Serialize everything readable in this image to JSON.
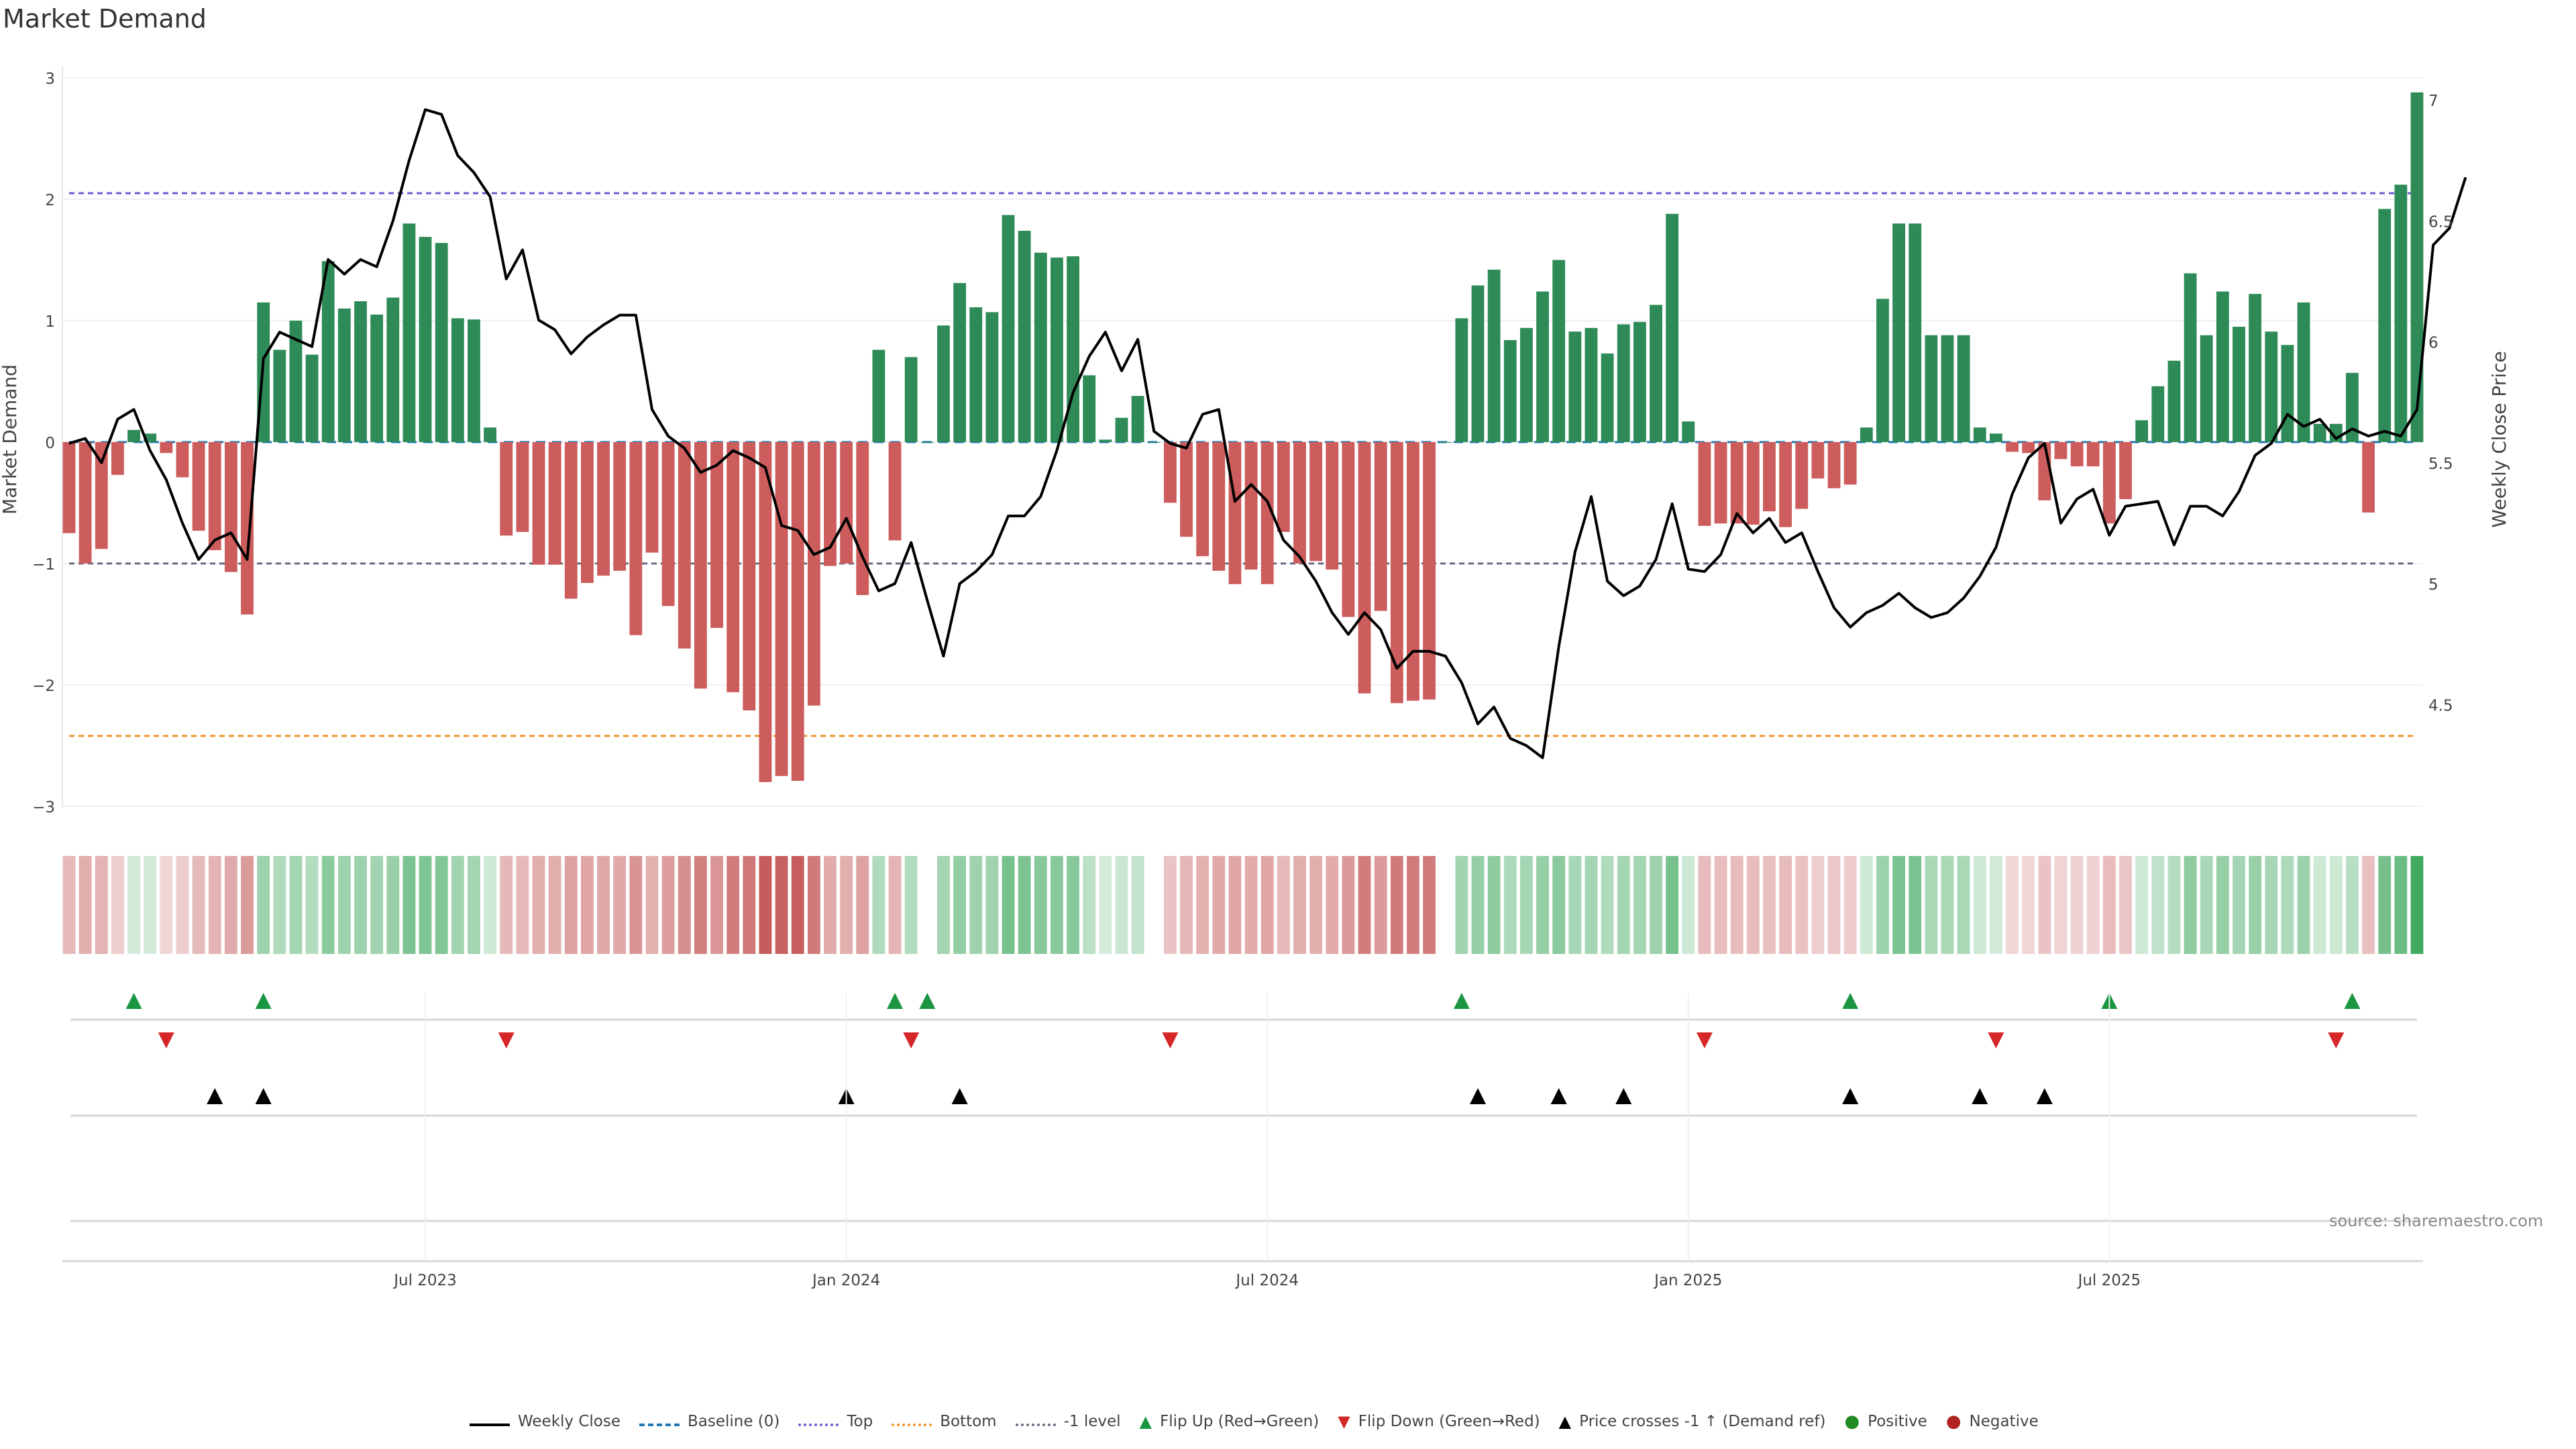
{
  "title": "Market Demand",
  "source": "source: sharemaestro.com",
  "colors": {
    "positive": "#2e8b57",
    "negative": "#cd5c5c",
    "line": "#000000",
    "top": "#6a5acd",
    "bottom": "#f0932b",
    "minus1": "#6b6b80",
    "baseline": "#1f77b4",
    "flip_up": "#1a9641",
    "flip_down": "#d62728"
  },
  "legend": [
    {
      "label": "Weekly Close",
      "icon": "solid-line"
    },
    {
      "label": "Baseline (0)",
      "icon": "dash-line"
    },
    {
      "label": "Top",
      "icon": "dot-line"
    },
    {
      "label": "Bottom",
      "icon": "dot-line"
    },
    {
      "label": "-1 level",
      "icon": "dot-line"
    },
    {
      "label": "Flip Up (Red→Green)",
      "icon": "triangle-up"
    },
    {
      "label": "Flip Down (Green→Red)",
      "icon": "triangle-down"
    },
    {
      "label": "Price crosses -1 ↑ (Demand ref)",
      "icon": "triangle-up"
    },
    {
      "label": "Positive",
      "icon": "circle"
    },
    {
      "label": "Negative",
      "icon": "circle"
    }
  ],
  "chart_data": {
    "type": "bar",
    "title": "Market Demand",
    "ylabel": "Market Demand",
    "y2label": "Weekly Close Price",
    "ylim": [
      -3.3,
      3.3
    ],
    "y2lim": [
      4.0,
      7.1
    ],
    "yticks": [
      "3",
      "2",
      "1",
      "0",
      "−1",
      "−2",
      "−3"
    ],
    "y2ticks": [
      "7",
      "6.5",
      "6",
      "5.5",
      "5",
      "4.5"
    ],
    "xticks": [
      "Jul 2023",
      "Jan 2024",
      "Jul 2024",
      "Jan 2025",
      "Jul 2025"
    ],
    "xtick_index": [
      22,
      48,
      74,
      100,
      126
    ],
    "reference_lines": {
      "top": 2.05,
      "bottom": -2.42,
      "minus1": -1.0,
      "baseline": 0
    },
    "demand": [
      -0.75,
      -1.0,
      -0.88,
      -0.27,
      0.1,
      0.07,
      -0.09,
      -0.29,
      -0.73,
      -0.89,
      -1.07,
      -1.42,
      1.15,
      0.76,
      1.0,
      0.72,
      1.49,
      1.1,
      1.16,
      1.05,
      1.19,
      1.8,
      1.69,
      1.64,
      1.02,
      1.01,
      0.12,
      -0.77,
      -0.74,
      -1.01,
      -1.01,
      -1.29,
      -1.16,
      -1.1,
      -1.06,
      -1.59,
      -0.91,
      -1.35,
      -1.7,
      -2.03,
      -1.53,
      -2.06,
      -2.21,
      -2.8,
      -2.75,
      -2.79,
      -2.17,
      -1.02,
      -1.0,
      -1.26,
      0.76,
      -0.81,
      0.7,
      0.0,
      0.96,
      1.31,
      1.11,
      1.07,
      1.87,
      1.74,
      1.56,
      1.52,
      1.53,
      0.55,
      0.02,
      0.2,
      0.38,
      -0.0,
      -0.5,
      -0.78,
      -0.94,
      -1.06,
      -1.17,
      -1.05,
      -1.17,
      -0.74,
      -1.0,
      -0.98,
      -1.05,
      -1.44,
      -2.07,
      -1.39,
      -2.15,
      -2.13,
      -2.12,
      0.0,
      1.02,
      1.29,
      1.42,
      0.84,
      0.94,
      1.24,
      1.5,
      0.91,
      0.94,
      0.73,
      0.97,
      0.99,
      1.13,
      1.88,
      0.17,
      -0.69,
      -0.67,
      -0.67,
      -0.68,
      -0.57,
      -0.7,
      -0.55,
      -0.3,
      -0.38,
      -0.35,
      0.12,
      1.18,
      1.8,
      1.8,
      0.88,
      0.88,
      0.88,
      0.12,
      0.07,
      -0.08,
      -0.09,
      -0.48,
      -0.14,
      -0.2,
      -0.2,
      -0.67,
      -0.47,
      0.18,
      0.46,
      0.67,
      1.39,
      0.88,
      1.24,
      0.95,
      1.22,
      0.91,
      0.8,
      1.15,
      0.15,
      0.15,
      0.57,
      -0.58,
      1.92,
      2.12,
      2.88
    ],
    "close": [
      5.58,
      5.6,
      5.5,
      5.68,
      5.72,
      5.55,
      5.43,
      5.25,
      5.1,
      5.18,
      5.21,
      5.1,
      5.93,
      6.04,
      6.01,
      5.98,
      6.34,
      6.28,
      6.34,
      6.31,
      6.5,
      6.75,
      6.96,
      6.94,
      6.77,
      6.7,
      6.6,
      6.26,
      6.38,
      6.09,
      6.05,
      5.95,
      6.02,
      6.07,
      6.11,
      6.11,
      5.72,
      5.61,
      5.56,
      5.46,
      5.49,
      5.55,
      5.52,
      5.48,
      5.24,
      5.22,
      5.12,
      5.15,
      5.27,
      5.11,
      4.97,
      5.0,
      5.17,
      4.93,
      4.7,
      5.0,
      5.05,
      5.12,
      5.28,
      5.28,
      5.36,
      5.55,
      5.79,
      5.94,
      6.04,
      5.88,
      6.01,
      5.63,
      5.58,
      5.56,
      5.7,
      5.72,
      5.34,
      5.41,
      5.34,
      5.18,
      5.11,
      5.01,
      4.88,
      4.79,
      4.88,
      4.81,
      4.65,
      4.72,
      4.72,
      4.7,
      4.59,
      4.42,
      4.49,
      4.36,
      4.33,
      4.28,
      4.74,
      5.13,
      5.36,
      5.01,
      4.95,
      4.99,
      5.1,
      5.33,
      5.06,
      5.05,
      5.12,
      5.29,
      5.21,
      5.27,
      5.17,
      5.21,
      5.05,
      4.9,
      4.82,
      4.88,
      4.91,
      4.96,
      4.9,
      4.86,
      4.88,
      4.94,
      5.03,
      5.15,
      5.37,
      5.52,
      5.58,
      5.25,
      5.35,
      5.39,
      5.2,
      5.32,
      5.33,
      5.34,
      5.16,
      5.32,
      5.32,
      5.28,
      5.38,
      5.53,
      5.58,
      5.7,
      5.65,
      5.68,
      5.6,
      5.64,
      5.61,
      5.63,
      5.61,
      5.72,
      6.4,
      6.47,
      6.68
    ],
    "heat_strip": "demand-strength",
    "flip_up_index": [
      4,
      12,
      51,
      53,
      86,
      110,
      126,
      141
    ],
    "flip_down_index": [
      6,
      27,
      52,
      68,
      101,
      119,
      140
    ],
    "price_cross_index": [
      9,
      12,
      48,
      55,
      87,
      92,
      96,
      110,
      118,
      122
    ]
  }
}
